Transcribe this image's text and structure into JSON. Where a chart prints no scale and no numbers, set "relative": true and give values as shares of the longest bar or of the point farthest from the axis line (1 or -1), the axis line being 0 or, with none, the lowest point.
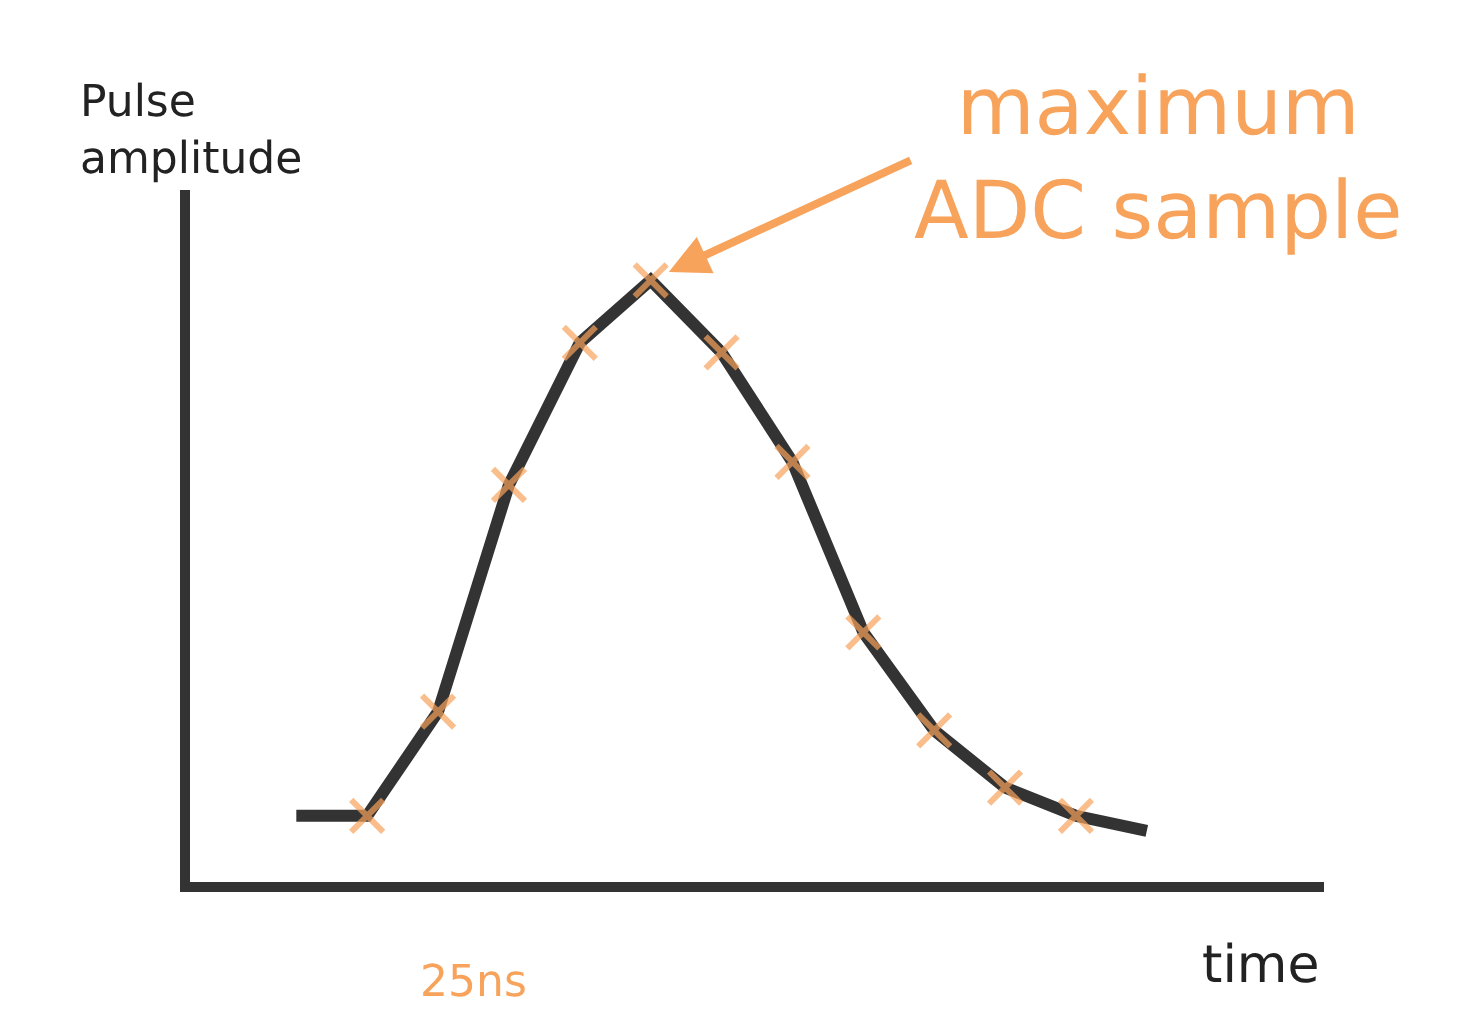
{
  "chart_data": {
    "type": "line",
    "relative": true,
    "xlabel": "time",
    "ylabel": "Pulse amplitude",
    "categories": [
      null,
      null,
      null,
      null,
      null,
      null,
      null,
      null,
      null,
      null,
      null,
      null,
      null
    ],
    "series": [
      {
        "color": "#333333",
        "marker": "cross",
        "values": [
          0.11,
          0.11,
          0.283,
          0.66,
          0.896,
          1,
          0.88,
          0.698,
          0.415,
          0.252,
          0.157,
          0.11,
          0.085
        ],
        "colors": [
          null,
          "#f7a35c",
          "#f7a35c",
          "#f7a35c",
          "#f7a35c",
          "#f7a35c",
          "#f7a35c",
          "#f7a35c",
          "#f7a35c",
          "#f7a35c",
          "#f7a35c",
          "#f7a35c",
          null
        ]
      }
    ],
    "annotations": [
      "maximum ADC sample",
      "25ns"
    ],
    "tick_labels": false
  }
}
